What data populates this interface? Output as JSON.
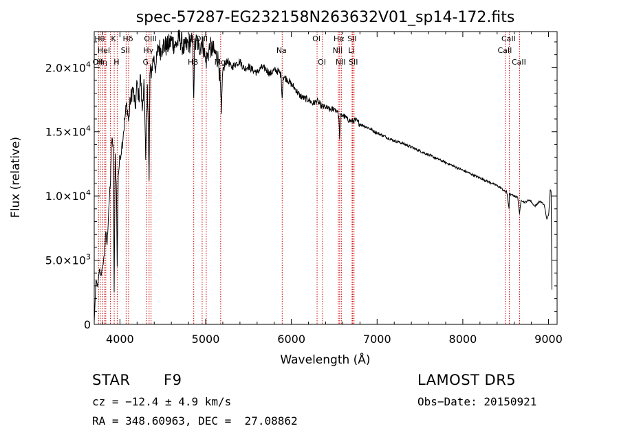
{
  "chart_data": {
    "type": "line",
    "title": "spec-57287-EG232158N263632V01_sp14-172.fits",
    "xlabel": "Wavelength (Å)",
    "ylabel": "Flux (relative)",
    "xlim": [
      3700,
      9100
    ],
    "ylim": [
      0,
      22800
    ],
    "x_ticks": [
      4000,
      5000,
      6000,
      7000,
      8000,
      9000
    ],
    "x_tick_labels": [
      "4000",
      "5000",
      "6000",
      "7000",
      "8000",
      "9000"
    ],
    "y_ticks": [
      {
        "value": 0,
        "mant": "0",
        "exp": ""
      },
      {
        "value": 5000,
        "mant": "5.0×10",
        "exp": "3"
      },
      {
        "value": 10000,
        "mant": "1.0×10",
        "exp": "4"
      },
      {
        "value": 15000,
        "mant": "1.5×10",
        "exp": "4"
      },
      {
        "value": 20000,
        "mant": "2.0×10",
        "exp": "4"
      }
    ],
    "line_color": "#000000",
    "marker_color": "#cc0000",
    "series": [
      {
        "x": [
          3700,
          3710,
          3720,
          3740,
          3760,
          3780,
          3800,
          3820,
          3835,
          3850,
          3870,
          3890,
          3900,
          3920,
          3933,
          3945,
          3960,
          3968,
          3980,
          4000,
          4020,
          4040,
          4060,
          4080,
          4101,
          4120,
          4150,
          4180,
          4200,
          4220,
          4240,
          4260,
          4280,
          4300,
          4320,
          4330,
          4340,
          4350,
          4370,
          4390,
          4420,
          4450,
          4480,
          4500,
          4550,
          4600,
          4650,
          4700,
          4750,
          4800,
          4830,
          4850,
          4861,
          4870,
          4900,
          4920,
          4950,
          4980,
          5000,
          5050,
          5100,
          5150,
          5170,
          5184,
          5200,
          5250,
          5300,
          5350,
          5400,
          5450,
          5500,
          5550,
          5600,
          5650,
          5700,
          5750,
          5800,
          5850,
          5880,
          5893,
          5905,
          5950,
          6000,
          6050,
          6100,
          6150,
          6200,
          6250,
          6300,
          6350,
          6400,
          6450,
          6500,
          6540,
          6555,
          6563,
          6570,
          6600,
          6650,
          6700,
          6750,
          6800,
          6900,
          7000,
          7100,
          7200,
          7300,
          7400,
          7500,
          7600,
          7700,
          7800,
          7900,
          8000,
          8100,
          8200,
          8300,
          8400,
          8450,
          8480,
          8498,
          8510,
          8540,
          8542,
          8560,
          8600,
          8640,
          8662,
          8680,
          8720,
          8780,
          8840,
          8900,
          8950,
          8980,
          9000,
          9010,
          9020,
          9030,
          9040
        ],
        "y": [
          200,
          1700,
          3500,
          2900,
          4300,
          3800,
          4600,
          5600,
          7200,
          6200,
          9100,
          11100,
          14200,
          14000,
          2500,
          13300,
          10200,
          4500,
          11600,
          13000,
          13800,
          14900,
          16200,
          17200,
          15800,
          17400,
          18400,
          16800,
          18900,
          17500,
          19400,
          16600,
          19100,
          12800,
          18700,
          15500,
          11200,
          19500,
          19800,
          20800,
          20100,
          21700,
          21300,
          21800,
          21600,
          22100,
          21700,
          22300,
          21400,
          21900,
          22000,
          21800,
          17600,
          21500,
          22200,
          21400,
          22000,
          21500,
          20400,
          21600,
          21200,
          20600,
          18900,
          16400,
          19700,
          20600,
          20000,
          20300,
          20500,
          19900,
          20100,
          19800,
          19600,
          20000,
          19900,
          19500,
          19800,
          19700,
          19400,
          17600,
          19300,
          19100,
          18700,
          18300,
          17800,
          17600,
          17500,
          17200,
          17400,
          17000,
          16900,
          16700,
          16800,
          16600,
          16000,
          14400,
          16200,
          16300,
          16000,
          15800,
          15900,
          15600,
          15300,
          14900,
          14600,
          14300,
          14100,
          13800,
          13500,
          13200,
          12900,
          12600,
          12300,
          12000,
          11700,
          11400,
          11100,
          10800,
          10600,
          10400,
          10300,
          10400,
          9000,
          10200,
          10100,
          10000,
          9900,
          8600,
          9700,
          9500,
          9700,
          9200,
          9600,
          9300,
          8200,
          8500,
          9300,
          10500,
          10300,
          2700
        ]
      }
    ],
    "line_markers": [
      {
        "x": 3750,
        "label": "OII",
        "row": 2
      },
      {
        "x": 3771,
        "label": "Hθ",
        "row": 0
      },
      {
        "x": 3798,
        "label": "Hη",
        "row": 2
      },
      {
        "x": 3820,
        "label": "HeI",
        "row": 1
      },
      {
        "x": 3835,
        "label": "",
        "row": 0
      },
      {
        "x": 3889,
        "label": "",
        "row": 0
      },
      {
        "x": 3933,
        "label": "K",
        "row": 0
      },
      {
        "x": 3968,
        "label": "H",
        "row": 2
      },
      {
        "x": 4072,
        "label": "SII",
        "row": 1
      },
      {
        "x": 4101,
        "label": "Hδ",
        "row": 0
      },
      {
        "x": 4308,
        "label": "G",
        "row": 2
      },
      {
        "x": 4340,
        "label": "Hγ",
        "row": 1
      },
      {
        "x": 4363,
        "label": "OIII",
        "row": 0
      },
      {
        "x": 4861,
        "label": "Hβ",
        "row": 2
      },
      {
        "x": 4959,
        "label": "OIII",
        "row": 0
      },
      {
        "x": 5007,
        "label": "",
        "row": 0
      },
      {
        "x": 5175,
        "label": "Mg",
        "row": 2
      },
      {
        "x": 5893,
        "label": "Na",
        "row": 1
      },
      {
        "x": 6300,
        "label": "OI",
        "row": 0
      },
      {
        "x": 6364,
        "label": "OI",
        "row": 2
      },
      {
        "x": 6548,
        "label": "NII",
        "row": 1
      },
      {
        "x": 6563,
        "label": "Hα",
        "row": 0
      },
      {
        "x": 6583,
        "label": "NII",
        "row": 2
      },
      {
        "x": 6708,
        "label": "Li",
        "row": 1
      },
      {
        "x": 6716,
        "label": "SII",
        "row": 0
      },
      {
        "x": 6731,
        "label": "SII",
        "row": 2
      },
      {
        "x": 8498,
        "label": "CaII",
        "row": 1
      },
      {
        "x": 8542,
        "label": "CaII",
        "row": 0
      },
      {
        "x": 8662,
        "label": "CaII",
        "row": 2
      }
    ]
  },
  "info": {
    "class": "STAR",
    "subclass": "F9",
    "survey": "LAMOST DR5",
    "cz": "cz = −12.4 ± 4.9 km/s",
    "obs_date": "Obs−Date: 20150921",
    "radec": "RA = 348.60963, DEC =  27.08862"
  }
}
